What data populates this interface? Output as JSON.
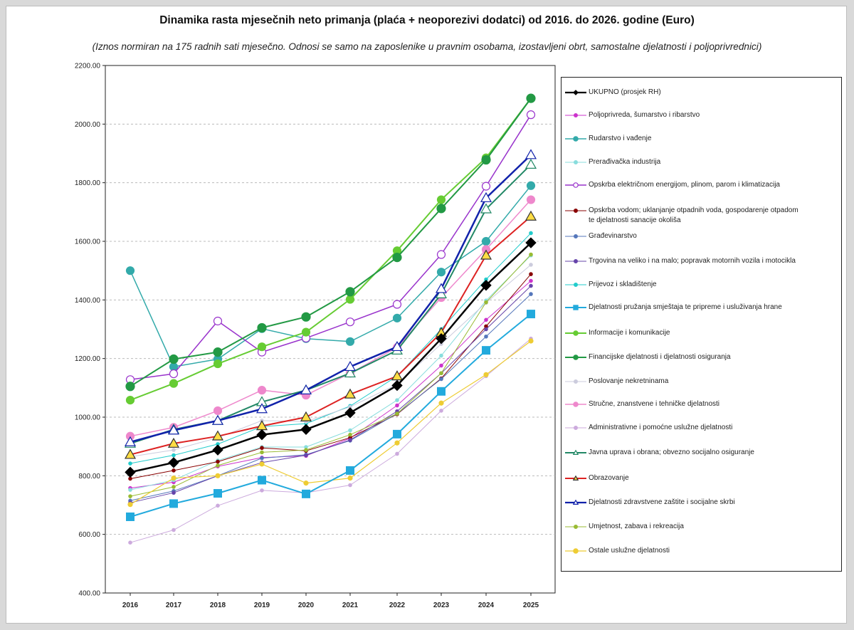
{
  "title": "Dinamika rasta mjesečnih neto primanja (plaća + neoporezivi dodatci) od 2016. do 2026. godine (Euro)",
  "subtitle": "(Iznos normiran na 175 radnih sati mjesečno. Odnosi se samo na zaposlenike u pravnim osobama, izostavljeni obrt, samostalne djelatnosti i poljoprivrednici)",
  "chart_data": {
    "type": "line",
    "title": "Dinamika rasta mjesečnih neto primanja (plaća + neoporezivi dodatci) od 2016. do 2026. godine (Euro)",
    "xlabel": "",
    "ylabel": "",
    "x": [
      "2016",
      "2017",
      "2018",
      "2019",
      "2020",
      "2021",
      "2022",
      "2023",
      "2024",
      "2025"
    ],
    "ylim": [
      400,
      2200
    ],
    "yticks": [
      "400.00",
      "600.00",
      "800.00",
      "1000.00",
      "1200.00",
      "1400.00",
      "1600.00",
      "1800.00",
      "2000.00",
      "2200.00"
    ],
    "grid": "horizontal dashed",
    "legend_position": "right",
    "series": [
      {
        "name": "UKUPNO (prosjek RH)",
        "color": "#000000",
        "values": [
          812,
          845,
          888,
          940,
          958,
          1015,
          1108,
          1268,
          1450,
          1595
        ]
      },
      {
        "name": "Poljoprivreda, šumarstvo i ribarstvo",
        "color": "#cc33cc",
        "values": [
          758,
          778,
          832,
          862,
          868,
          928,
          1040,
          1176,
          1332,
          1465
        ]
      },
      {
        "name": "Rudarstvo i vađenje",
        "color": "#33aaaa",
        "values": [
          1500,
          1172,
          1198,
          1302,
          1268,
          1258,
          1338,
          1495,
          1600,
          1790
        ]
      },
      {
        "name": "Prerađivačka industrija",
        "color": "#88dddd",
        "values": [
          752,
          785,
          852,
          898,
          898,
          955,
          1058,
          1210,
          1398,
          1552
        ]
      },
      {
        "name": "Opskrba električnom energijom, plinom, parom i klimatizacija",
        "color": "#9933cc",
        "values": [
          1128,
          1148,
          1328,
          1222,
          1270,
          1325,
          1385,
          1555,
          1788,
          2032
        ]
      },
      {
        "name": "Opskrba vodom; uklanjanje otpadnih voda, gospodarenje otpadom te djelatnosti sanacije okoliša",
        "color": "#880000",
        "values": [
          790,
          818,
          848,
          895,
          885,
          930,
          1010,
          1132,
          1310,
          1488
        ]
      },
      {
        "name": "Građevinarstvo",
        "color": "#5577bb",
        "values": [
          715,
          748,
          800,
          860,
          872,
          920,
          1012,
          1130,
          1275,
          1420
        ]
      },
      {
        "name": "Trgovina na veliko i na malo; popravak motornih vozila i motocikla",
        "color": "#6644aa",
        "values": [
          708,
          742,
          800,
          845,
          870,
          922,
          1020,
          1150,
          1300,
          1448
        ]
      },
      {
        "name": "Prijevoz i skladištenje",
        "color": "#22cccc",
        "values": [
          842,
          870,
          908,
          968,
          978,
          1038,
          1140,
          1300,
          1470,
          1628
        ]
      },
      {
        "name": "Djelatnosti pružanja smještaja te pripreme i usluživanja hrane",
        "color": "#22aadd",
        "values": [
          660,
          705,
          740,
          785,
          738,
          818,
          942,
          1088,
          1228,
          1352
        ]
      },
      {
        "name": "Informacije i komunikacije",
        "color": "#66cc33",
        "values": [
          1058,
          1115,
          1182,
          1240,
          1290,
          1402,
          1568,
          1742,
          1885,
          2088
        ]
      },
      {
        "name": "Financijske djelatnosti i djelatnosti osiguranja",
        "color": "#229944",
        "values": [
          1105,
          1198,
          1222,
          1305,
          1342,
          1428,
          1545,
          1712,
          1878,
          2088
        ]
      },
      {
        "name": "Poslovanje nekretninama",
        "color": "#ccccdd",
        "values": [
          865,
          888,
          930,
          988,
          985,
          1035,
          1112,
          1250,
          1390,
          1520
        ]
      },
      {
        "name": "Stručne, znanstvene i tehničke djelatnosti",
        "color": "#ee88cc",
        "values": [
          935,
          965,
          1022,
          1092,
          1075,
          1150,
          1238,
          1408,
          1572,
          1742
        ]
      },
      {
        "name": "Administrativne i pomoćne uslužne djelatnosti",
        "color": "#ccaadd",
        "values": [
          572,
          615,
          698,
          750,
          742,
          768,
          875,
          1022,
          1140,
          1268
        ]
      },
      {
        "name": "Javna uprava i obrana; obvezno socijalno osiguranje",
        "color": "#228866",
        "values": [
          910,
          958,
          988,
          1052,
          1092,
          1150,
          1228,
          1420,
          1710,
          1862
        ]
      },
      {
        "name": "Obrazovanje",
        "color": "#dd2222",
        "values": [
          872,
          910,
          935,
          970,
          1000,
          1078,
          1140,
          1288,
          1552,
          1685
        ]
      },
      {
        "name": "Djelatnosti zdravstvene zaštite i socijalne skrbi",
        "color": "#1122aa",
        "values": [
          915,
          955,
          988,
          1028,
          1092,
          1172,
          1240,
          1438,
          1748,
          1895
        ]
      },
      {
        "name": "Umjetnost, zabava i rekreacija",
        "color": "#99bb33",
        "values": [
          730,
          762,
          835,
          880,
          888,
          940,
          1012,
          1150,
          1392,
          1555
        ]
      },
      {
        "name": "Ostale uslužne djelatnosti",
        "color": "#eecc33",
        "values": [
          702,
          792,
          800,
          840,
          775,
          792,
          912,
          1048,
          1145,
          1260
        ]
      }
    ],
    "annotations": "green arrows pointing to Javna uprava i obrana; obvezno socijalno osiguranje, Obrazovanje, Djelatnosti zdravstvene zaštite i socijalne skrbi"
  }
}
